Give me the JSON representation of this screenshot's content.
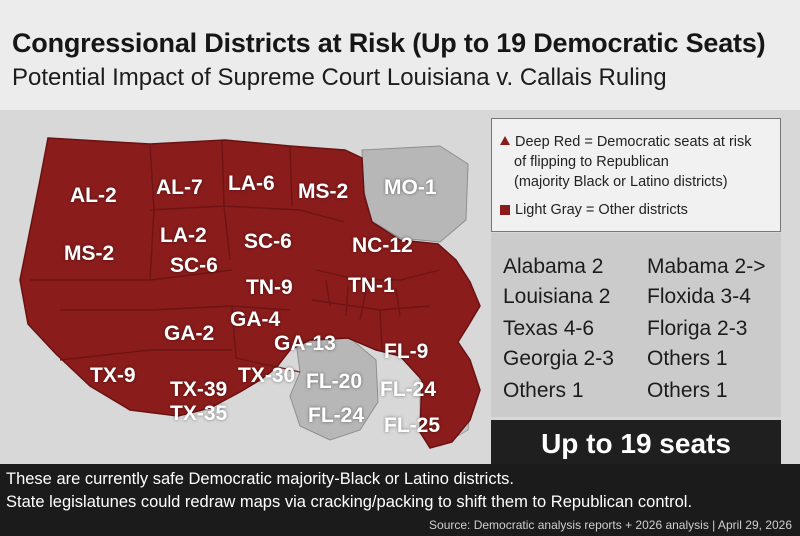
{
  "header": {
    "title": "Congressional Districts at Risk (Up to 19 Democratic Seats)",
    "subtitle": "Potential Impact of Supreme Court Louisiana v. Callais Ruling"
  },
  "colors": {
    "at_risk": "#8a1c1c",
    "other": "#b7b7b7",
    "background": "#d8d8d8"
  },
  "map": {
    "labels": [
      "AL-2",
      "AL-7",
      "LA-6",
      "MS-2",
      "MO-1",
      "MS-2",
      "LA-2",
      "SC-6",
      "SC-6",
      "NC-12",
      "TN-9",
      "TN-1",
      "GA-2",
      "GA-4",
      "GA-13",
      "FL-9",
      "TX-9",
      "TX-39",
      "TX-30",
      "FL-20",
      "FL-24",
      "TX-35",
      "FL-24",
      "FL-25"
    ]
  },
  "legend": {
    "line1": "Deep Red = Democratic seats at risk",
    "line2": "of flipping to Republican",
    "line3": "(majority Black or Latino districts)",
    "line4": "Light Gray = Other districts"
  },
  "counts": {
    "left": [
      "Alabama 2",
      "Louisiana  2",
      "Texas  4-6",
      "Georgia 2-3",
      "Others 1"
    ],
    "right": [
      "Mabama 2->",
      "Floxida 3-4",
      "Floriga 2-3",
      "Others 1",
      "Others 1"
    ]
  },
  "total": "Up to 19 seats",
  "footer": {
    "line1": "These are currently safe Democratic majority-Black or Latino districts.",
    "line2": "State legislatunes could redraw maps via cracking/packing to shift them to Republican control.",
    "source": "Source: Democratic analysis reports + 2026 analysis | April 29, 2026"
  }
}
